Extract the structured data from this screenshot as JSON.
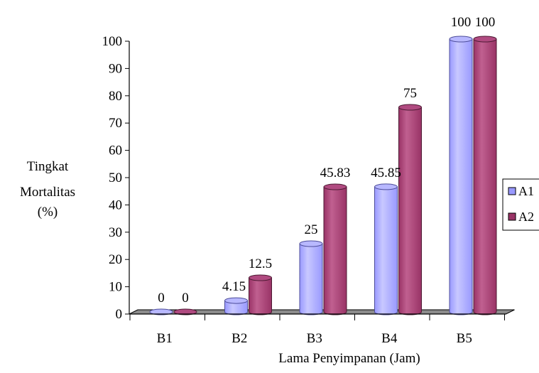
{
  "chart_data": {
    "type": "bar",
    "style": "3d-cylinder",
    "title": "",
    "xlabel": "Lama Penyimpanan (Jam)",
    "ylabel_lines": [
      "Tingkat",
      "Mortalitas",
      "(%)"
    ],
    "ylim": [
      0,
      100
    ],
    "yticks": [
      0,
      10,
      20,
      30,
      40,
      50,
      60,
      70,
      80,
      90,
      100
    ],
    "categories": [
      "B1",
      "B2",
      "B3",
      "B4",
      "B5"
    ],
    "series": [
      {
        "name": "A1",
        "values": [
          0,
          4.15,
          25,
          45.85,
          100
        ],
        "labels": [
          "0",
          "4.15",
          "25",
          "45.85",
          "100"
        ]
      },
      {
        "name": "A2",
        "values": [
          0,
          12.5,
          45.83,
          75,
          100
        ],
        "labels": [
          "0",
          "12.5",
          "45.83",
          "75",
          "100"
        ]
      }
    ],
    "legend": {
      "position": "right",
      "entries": [
        "A1",
        "A2"
      ]
    },
    "grid": false,
    "colors": {
      "A1": {
        "body": "#9999ff",
        "light": "#c8c8ff",
        "top": "#b8b8ff",
        "edge": "#4d4d99"
      },
      "A2": {
        "body": "#993366",
        "light": "#c06090",
        "top": "#b04a80",
        "edge": "#4d1a33"
      },
      "floor": "#8c8c8c",
      "axis": "#000000"
    }
  }
}
